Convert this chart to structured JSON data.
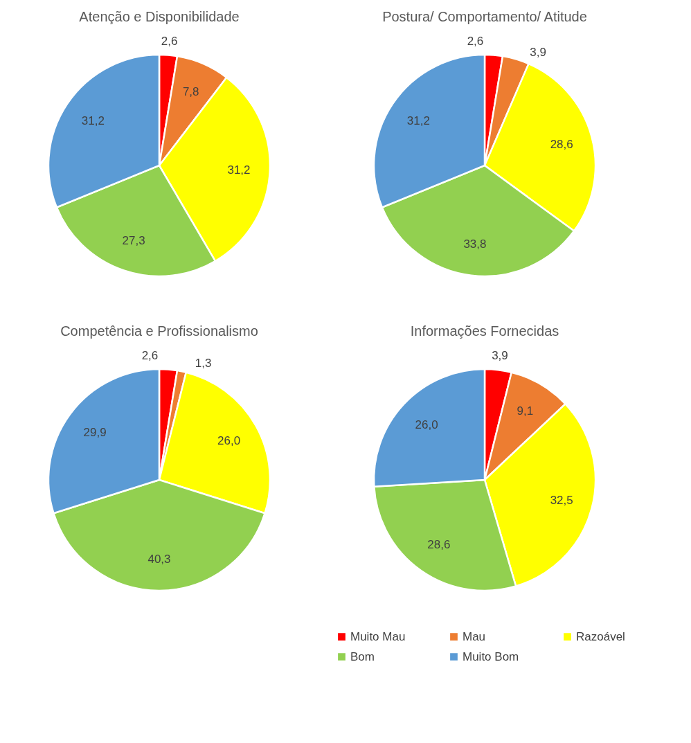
{
  "chart_data": [
    {
      "type": "pie",
      "title": "Atenção e Disponibilidade",
      "categories": [
        null,
        null,
        null,
        null,
        null
      ],
      "values": [
        2.6,
        7.8,
        31.2,
        27.3,
        31.2
      ],
      "colors": [
        "#ff0000",
        "#ed7d31",
        "#ffff00",
        "#92d050",
        "#5b9bd5"
      ],
      "value_labels": [
        "2,6",
        "7,8",
        "31,2",
        "27,3",
        "31,2"
      ],
      "legend": false
    },
    {
      "type": "pie",
      "title": "Postura/ Comportamento/ Atitude",
      "categories": [
        null,
        null,
        null,
        null,
        null
      ],
      "values": [
        2.6,
        3.9,
        28.6,
        33.8,
        31.2
      ],
      "colors": [
        "#ff0000",
        "#ed7d31",
        "#ffff00",
        "#92d050",
        "#5b9bd5"
      ],
      "value_labels": [
        "2,6",
        "3,9",
        "28,6",
        "33,8",
        "31,2"
      ],
      "legend": false
    },
    {
      "type": "pie",
      "title": "Competência e Profissionalismo",
      "categories": [
        null,
        null,
        null,
        null,
        null
      ],
      "values": [
        2.6,
        1.3,
        26.0,
        40.3,
        29.9
      ],
      "colors": [
        "#ff0000",
        "#ed7d31",
        "#ffff00",
        "#92d050",
        "#5b9bd5"
      ],
      "value_labels": [
        "2,6",
        "1,3",
        "26,0",
        "40,3",
        "29,9"
      ],
      "legend": false
    },
    {
      "type": "pie",
      "title": "Informações Fornecidas",
      "categories": [
        "Muito Mau",
        "Mau",
        "Razoável",
        "Bom",
        "Muito Bom"
      ],
      "values": [
        3.9,
        9.1,
        32.5,
        28.6,
        26.0
      ],
      "colors": [
        "#ff0000",
        "#ed7d31",
        "#ffff00",
        "#92d050",
        "#5b9bd5"
      ],
      "value_labels": [
        "3,9",
        "9,1",
        "32,5",
        "28,6",
        "26,0"
      ],
      "legend": "bottom"
    }
  ]
}
